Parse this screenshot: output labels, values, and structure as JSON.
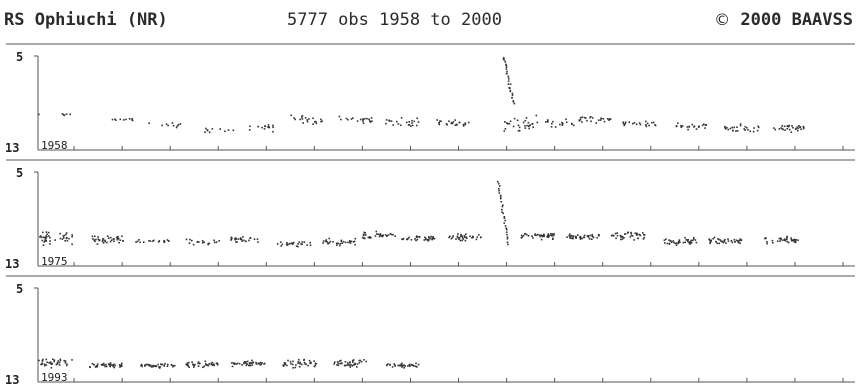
{
  "header": {
    "title": "RS Ophiuchi (NR)",
    "obs_text": "5777 obs 1958 to 2000",
    "copyright_symbol": "©",
    "copyright_text": "2000 BAAVSS"
  },
  "chart_data": {
    "type": "scatter",
    "title": "RS Ophiuchi (NR)",
    "subtitle": "5777 obs 1958 to 2000",
    "colors": {
      "points": "#333333",
      "axes": "#555555"
    },
    "panels": [
      {
        "start_label": "1958",
        "ylim": [
          13,
          5
        ],
        "yticks": [
          "5",
          "13"
        ],
        "ticks_per_panel": 17,
        "segments": [
          {
            "x": 0.3,
            "mean": 10.5,
            "spread": 0.3,
            "n": 6
          },
          {
            "x": 1.4,
            "mean": 11.0,
            "spread": 0.2,
            "n": 10
          },
          {
            "x": 2.2,
            "mean": 11.5,
            "spread": 0.3,
            "n": 10
          },
          {
            "x": 3.2,
            "mean": 12.0,
            "spread": 0.4,
            "n": 10
          },
          {
            "x": 3.9,
            "mean": 11.7,
            "spread": 0.5,
            "n": 14
          },
          {
            "x": 4.7,
            "mean": 11.0,
            "spread": 0.5,
            "n": 20
          },
          {
            "x": 5.6,
            "mean": 11.0,
            "spread": 0.5,
            "n": 20
          },
          {
            "x": 6.4,
            "mean": 11.3,
            "spread": 0.6,
            "n": 22
          },
          {
            "x": 7.3,
            "mean": 11.3,
            "spread": 0.4,
            "n": 26
          },
          {
            "x": 8.5,
            "mean": 11.4,
            "spread": 1.0,
            "n": 30
          },
          {
            "x": 9.2,
            "mean": 11.3,
            "spread": 0.5,
            "n": 18
          },
          {
            "x": 9.8,
            "mean": 11.0,
            "spread": 0.4,
            "n": 24
          },
          {
            "x": 10.6,
            "mean": 11.4,
            "spread": 0.3,
            "n": 22
          },
          {
            "x": 11.5,
            "mean": 11.6,
            "spread": 0.4,
            "n": 22
          },
          {
            "x": 12.4,
            "mean": 11.8,
            "spread": 0.5,
            "n": 26
          },
          {
            "x": 13.2,
            "mean": 11.8,
            "spread": 0.5,
            "n": 30
          }
        ],
        "outburst": {
          "x": 8.2,
          "peak": 5.0,
          "end": 9.5
        }
      },
      {
        "start_label": "1975",
        "ylim": [
          13,
          5
        ],
        "yticks": [
          "5",
          "13"
        ],
        "ticks_per_panel": 17,
        "segments": [
          {
            "x": 0.3,
            "mean": 11.2,
            "spread": 0.8,
            "n": 40
          },
          {
            "x": 1.2,
            "mean": 11.3,
            "spread": 0.6,
            "n": 40
          },
          {
            "x": 2.0,
            "mean": 11.5,
            "spread": 0.3,
            "n": 18
          },
          {
            "x": 2.9,
            "mean": 11.6,
            "spread": 0.4,
            "n": 18
          },
          {
            "x": 3.6,
            "mean": 11.3,
            "spread": 0.5,
            "n": 26
          },
          {
            "x": 4.5,
            "mean": 11.8,
            "spread": 0.3,
            "n": 26
          },
          {
            "x": 5.3,
            "mean": 11.6,
            "spread": 0.5,
            "n": 30
          },
          {
            "x": 6.0,
            "mean": 11.0,
            "spread": 0.6,
            "n": 34
          },
          {
            "x": 6.7,
            "mean": 11.2,
            "spread": 0.4,
            "n": 34
          },
          {
            "x": 7.5,
            "mean": 11.2,
            "spread": 0.5,
            "n": 34
          },
          {
            "x": 8.8,
            "mean": 11.0,
            "spread": 0.4,
            "n": 40
          },
          {
            "x": 9.6,
            "mean": 11.1,
            "spread": 0.4,
            "n": 40
          },
          {
            "x": 10.4,
            "mean": 11.0,
            "spread": 0.5,
            "n": 40
          },
          {
            "x": 11.3,
            "mean": 11.6,
            "spread": 0.5,
            "n": 40
          },
          {
            "x": 12.1,
            "mean": 11.5,
            "spread": 0.4,
            "n": 40
          },
          {
            "x": 13.1,
            "mean": 11.4,
            "spread": 0.5,
            "n": 36
          }
        ],
        "outburst": {
          "x": 8.1,
          "peak": 5.8,
          "end": 11.8
        }
      },
      {
        "start_label": "1993",
        "ylim": [
          13,
          5
        ],
        "yticks": [
          "5",
          "13"
        ],
        "ticks_per_panel": 17,
        "segments": [
          {
            "x": 0.3,
            "mean": 12.0,
            "spread": 0.6,
            "n": 36
          },
          {
            "x": 1.2,
            "mean": 12.3,
            "spread": 0.3,
            "n": 40
          },
          {
            "x": 2.1,
            "mean": 12.3,
            "spread": 0.3,
            "n": 40
          },
          {
            "x": 2.9,
            "mean": 12.2,
            "spread": 0.4,
            "n": 40
          },
          {
            "x": 3.7,
            "mean": 12.1,
            "spread": 0.4,
            "n": 40
          },
          {
            "x": 4.6,
            "mean": 12.1,
            "spread": 0.5,
            "n": 40
          },
          {
            "x": 5.5,
            "mean": 12.1,
            "spread": 0.5,
            "n": 40
          },
          {
            "x": 6.4,
            "mean": 12.3,
            "spread": 0.3,
            "n": 34
          }
        ],
        "outburst": null
      }
    ],
    "xlabel": "",
    "ylabel": ""
  }
}
